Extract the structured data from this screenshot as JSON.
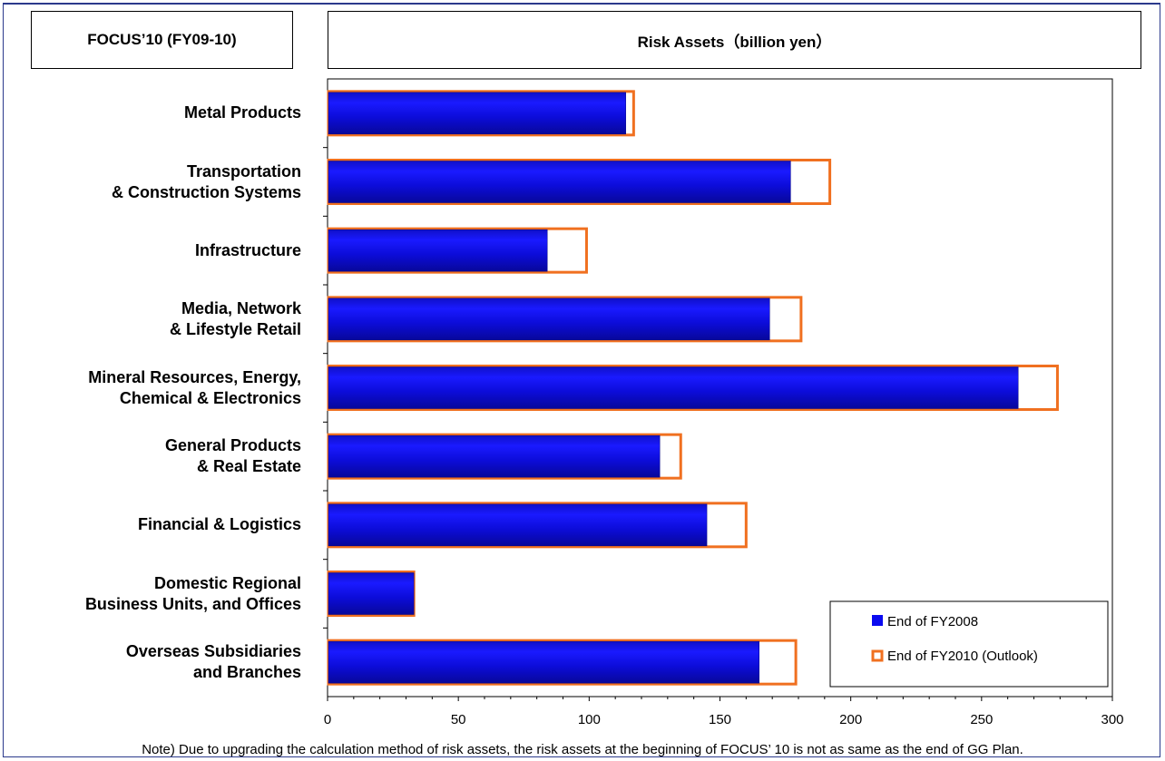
{
  "header": {
    "left_title": "FOCUS’10 (FY09-10)",
    "right_title": "Risk Assets（billion yen）"
  },
  "chart_data": {
    "type": "bar",
    "orientation": "horizontal",
    "title": "Risk Assets（billion yen）",
    "categories": [
      "Metal Products",
      "Transportation\n& Construction Systems",
      "Infrastructure",
      "Media, Network\n& Lifestyle Retail",
      "Mineral Resources, Energy,\nChemical & Electronics",
      "General Products\n& Real Estate",
      "Financial & Logistics",
      "Domestic Regional\nBusiness Units, and Offices",
      "Overseas Subsidiaries\nand Branches"
    ],
    "series": [
      {
        "name": "End of FY2008",
        "values": [
          114,
          177,
          84,
          169,
          264,
          127,
          145,
          33,
          165
        ],
        "color": "#0a0af0"
      },
      {
        "name": "End of FY2010 (Outlook)",
        "values": [
          117,
          192,
          99,
          181,
          279,
          135,
          160,
          33,
          179
        ],
        "color": "#f07020"
      }
    ],
    "xlim": [
      0,
      300
    ],
    "xticks": [
      0,
      50,
      100,
      150,
      200,
      250,
      300
    ],
    "legend_position": "bottom-right",
    "grid": false
  },
  "note": "Note) Due to upgrading the calculation method of risk assets, the risk assets at the beginning of FOCUS’ 10 is not as same as the end of GG Plan."
}
